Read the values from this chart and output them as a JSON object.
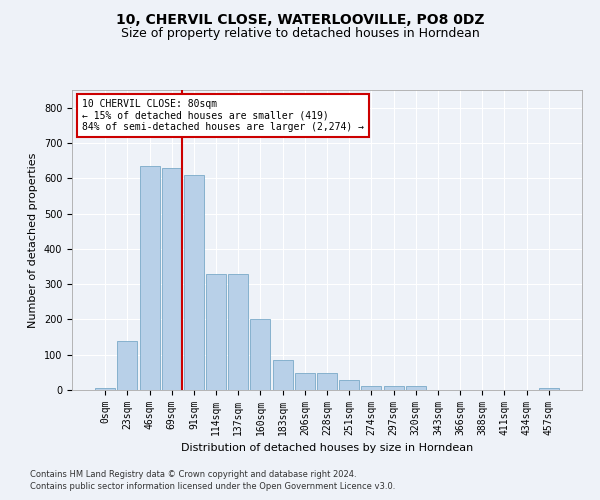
{
  "title": "10, CHERVIL CLOSE, WATERLOOVILLE, PO8 0DZ",
  "subtitle": "Size of property relative to detached houses in Horndean",
  "xlabel": "Distribution of detached houses by size in Horndean",
  "ylabel": "Number of detached properties",
  "bar_labels": [
    "0sqm",
    "23sqm",
    "46sqm",
    "69sqm",
    "91sqm",
    "114sqm",
    "137sqm",
    "160sqm",
    "183sqm",
    "206sqm",
    "228sqm",
    "251sqm",
    "274sqm",
    "297sqm",
    "320sqm",
    "343sqm",
    "366sqm",
    "388sqm",
    "411sqm",
    "434sqm",
    "457sqm"
  ],
  "bar_values": [
    5,
    140,
    635,
    630,
    610,
    330,
    330,
    200,
    85,
    47,
    47,
    27,
    12,
    12,
    10,
    0,
    0,
    0,
    0,
    0,
    5
  ],
  "bar_color": "#b8d0e8",
  "bar_edgecolor": "#7aaac8",
  "vline_color": "#cc0000",
  "vline_x": 3.48,
  "annotation_text": "10 CHERVIL CLOSE: 80sqm\n← 15% of detached houses are smaller (419)\n84% of semi-detached houses are larger (2,274) →",
  "annotation_box_color": "#ffffff",
  "annotation_box_edgecolor": "#cc0000",
  "ylim": [
    0,
    850
  ],
  "yticks": [
    0,
    100,
    200,
    300,
    400,
    500,
    600,
    700,
    800
  ],
  "footnote1": "Contains HM Land Registry data © Crown copyright and database right 2024.",
  "footnote2": "Contains public sector information licensed under the Open Government Licence v3.0.",
  "bg_color": "#eef2f8",
  "plot_bg_color": "#eef2f8",
  "grid_color": "#ffffff",
  "title_fontsize": 10,
  "subtitle_fontsize": 9,
  "axis_label_fontsize": 8,
  "tick_fontsize": 7,
  "annotation_fontsize": 7,
  "footnote_fontsize": 6
}
